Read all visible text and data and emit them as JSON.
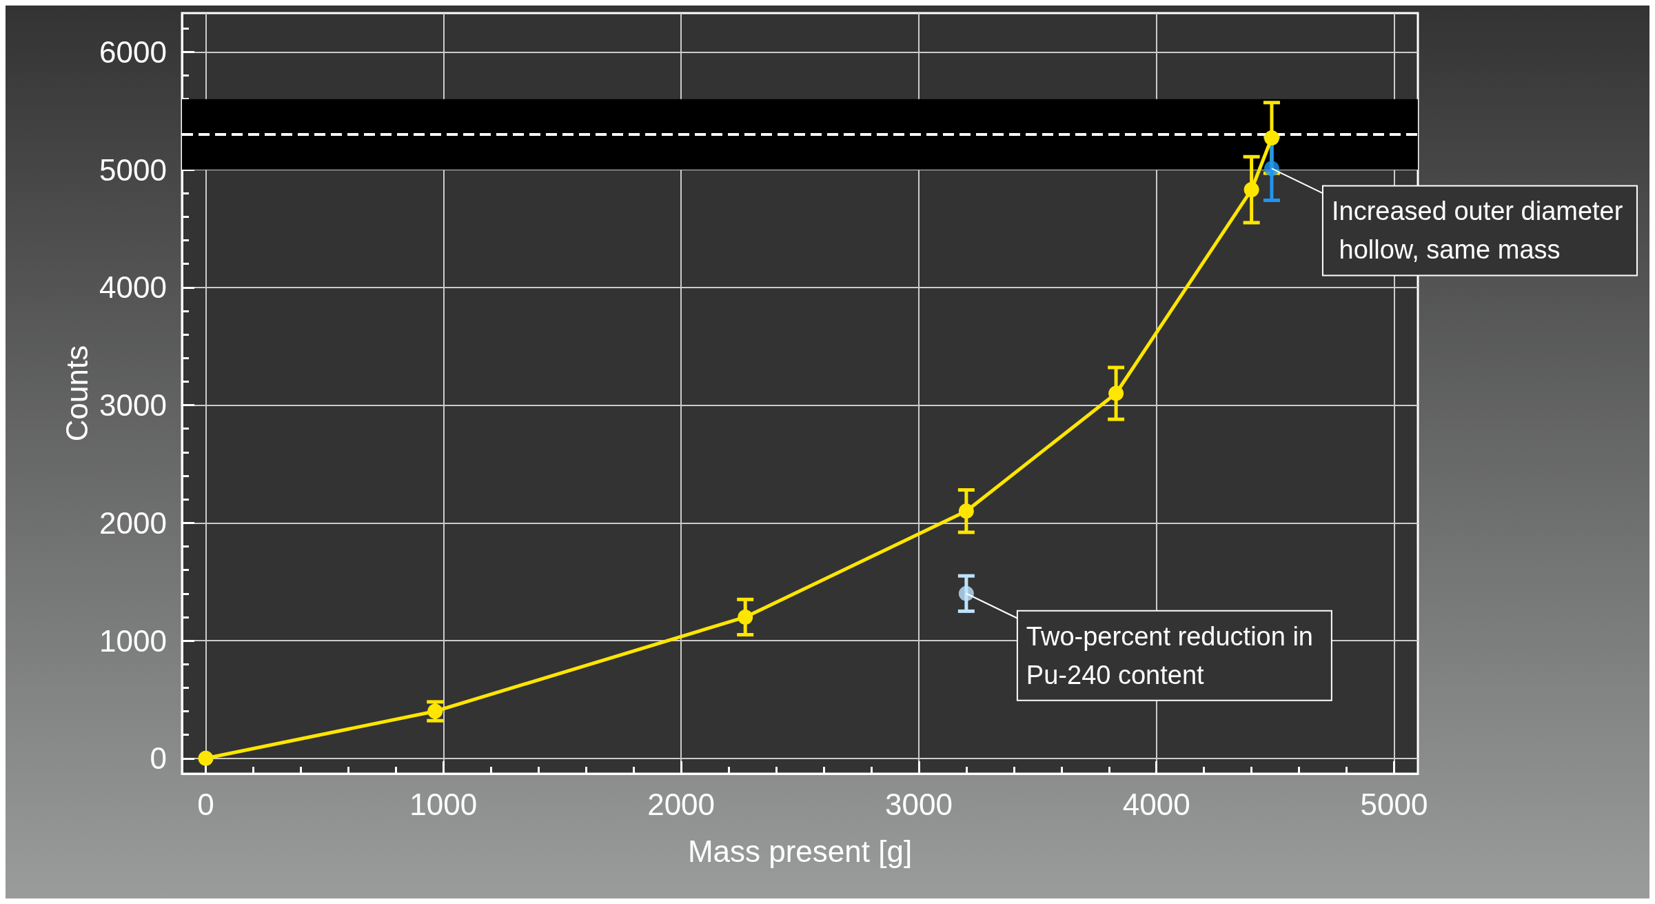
{
  "chart_data": {
    "type": "line",
    "xlabel": "Mass present [g]",
    "ylabel": "Counts",
    "xlim": [
      -100,
      5100
    ],
    "xticks": [
      0,
      1000,
      2000,
      3000,
      4000,
      5000
    ],
    "ylim": [
      -130,
      6330
    ],
    "yticks": [
      0,
      1000,
      2000,
      3000,
      4000,
      5000,
      6000
    ],
    "grid": true,
    "marker": "circle",
    "line_style": "solid",
    "series": [
      {
        "color": "#ffe600",
        "x": [
          0,
          965,
          2270,
          3200,
          3830,
          4400,
          4485
        ],
        "values": [
          0,
          400,
          1200,
          2100,
          3100,
          4830,
          5270
        ],
        "errors": [
          null,
          80,
          150,
          180,
          220,
          280,
          300
        ]
      },
      {
        "type": "scatter",
        "color": "#bde3ff",
        "x": [
          3200
        ],
        "values": [
          1400
        ],
        "errors": [
          150
        ]
      },
      {
        "type": "scatter",
        "color": "#1e96f0",
        "x": [
          4485
        ],
        "values": [
          5010
        ],
        "errors": [
          270
        ]
      }
    ],
    "bands": [
      {
        "axis": "y",
        "from": 5000,
        "to": 5600,
        "color": "#000000"
      }
    ],
    "ref_lines": [
      {
        "axis": "y",
        "value": 5300,
        "color": "#ffffff",
        "line_style": "dashed"
      }
    ],
    "annotations": [
      {
        "text": "Increased outer diameter hollow, same mass",
        "x": 4485,
        "y": 5010
      },
      {
        "text": "Two-percent reduction in Pu-240 content",
        "x": 3200,
        "y": 1400
      }
    ]
  }
}
